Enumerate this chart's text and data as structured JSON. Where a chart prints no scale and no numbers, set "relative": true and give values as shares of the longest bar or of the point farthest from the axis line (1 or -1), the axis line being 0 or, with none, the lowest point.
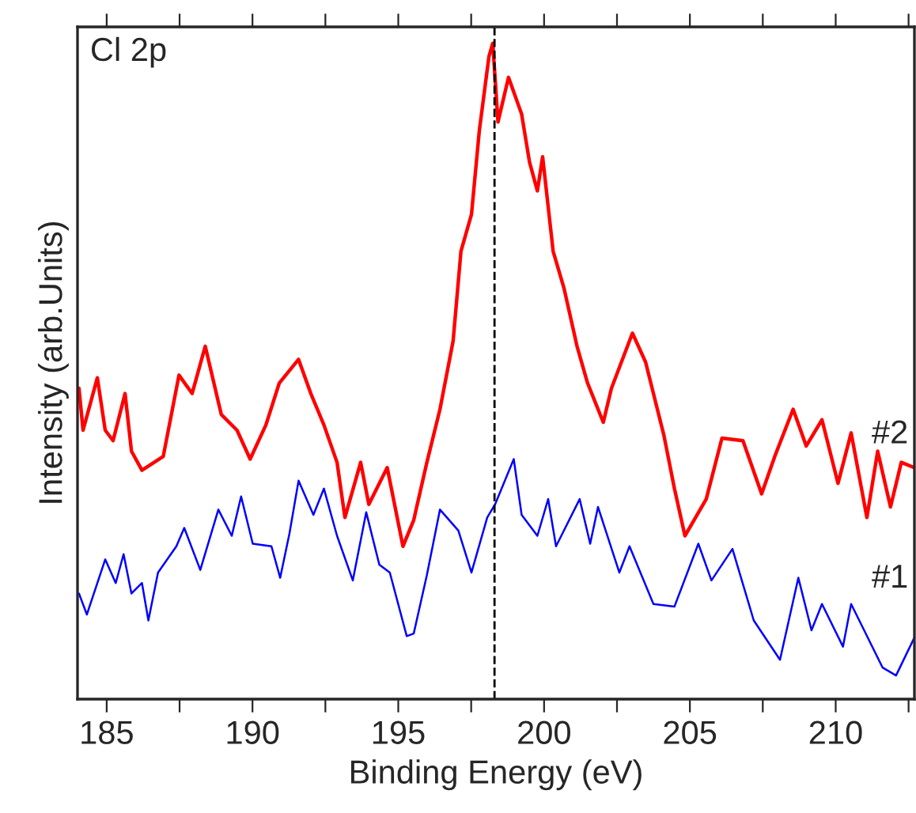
{
  "chart_data": {
    "type": "line",
    "relative": true,
    "xlabel": "Binding Energy (eV)",
    "ylabel": "Intensity (arb.Units)",
    "annotations": [
      "Cl 2p"
    ],
    "xlim": [
      184.0,
      212.7
    ],
    "xticks": [
      185,
      {
        "value": 187.5,
        "label": null
      },
      190,
      {
        "value": 192.5,
        "label": null
      },
      195,
      {
        "value": 197.5,
        "label": null
      },
      200,
      {
        "value": 202.5,
        "label": null
      },
      205,
      {
        "value": 207.5,
        "label": null
      },
      210,
      {
        "value": 212.5,
        "label": null
      }
    ],
    "ref_lines": [
      {
        "axis": "x",
        "value": 198.3,
        "color": "#000000",
        "line_style": "dashed"
      }
    ],
    "grid": false,
    "tick_labels": "x",
    "series": [
      {
        "name": "#2",
        "color": "#ff0000",
        "x": [
          184.05,
          184.19,
          184.68,
          184.95,
          185.22,
          185.63,
          185.85,
          186.21,
          186.94,
          187.48,
          187.93,
          188.38,
          188.93,
          189.47,
          189.92,
          190.46,
          190.92,
          191.58,
          192.0,
          192.45,
          192.9,
          193.17,
          193.71,
          193.99,
          194.62,
          195.16,
          195.53,
          195.98,
          196.43,
          196.88,
          197.15,
          197.51,
          197.78,
          198.11,
          198.24,
          198.42,
          198.78,
          199.23,
          199.5,
          199.77,
          199.95,
          200.31,
          200.68,
          201.13,
          201.49,
          202.03,
          202.31,
          203.03,
          203.48,
          204.11,
          204.47,
          204.83,
          205.56,
          206.1,
          206.82,
          207.46,
          207.91,
          208.54,
          208.99,
          209.53,
          210.08,
          210.53,
          211.07,
          211.44,
          211.88,
          212.25,
          212.69
        ],
        "values": [
          0.474,
          0.41,
          0.49,
          0.41,
          0.394,
          0.466,
          0.378,
          0.349,
          0.37,
          0.494,
          0.466,
          0.538,
          0.434,
          0.41,
          0.366,
          0.418,
          0.482,
          0.518,
          0.466,
          0.418,
          0.361,
          0.277,
          0.361,
          0.297,
          0.353,
          0.233,
          0.273,
          0.361,
          0.442,
          0.546,
          0.683,
          0.739,
          0.867,
          0.98,
          1.0,
          0.88,
          0.948,
          0.892,
          0.819,
          0.775,
          0.827,
          0.683,
          0.627,
          0.538,
          0.482,
          0.422,
          0.474,
          0.558,
          0.514,
          0.402,
          0.321,
          0.249,
          0.305,
          0.398,
          0.394,
          0.313,
          0.37,
          0.442,
          0.386,
          0.426,
          0.329,
          0.406,
          0.277,
          0.378,
          0.293,
          0.361,
          0.353
        ]
      },
      {
        "name": "#1",
        "color": "#0000ff",
        "x": [
          184.05,
          184.32,
          184.95,
          185.31,
          185.58,
          185.85,
          186.21,
          186.43,
          186.76,
          187.39,
          187.66,
          188.21,
          188.83,
          189.29,
          189.61,
          190.01,
          190.65,
          190.95,
          191.27,
          191.58,
          192.09,
          192.45,
          192.9,
          193.44,
          193.9,
          194.35,
          194.71,
          195.29,
          195.53,
          195.98,
          196.43,
          197.06,
          197.51,
          198.05,
          198.32,
          198.96,
          199.23,
          199.77,
          200.14,
          200.41,
          201.22,
          201.58,
          201.85,
          202.58,
          202.93,
          203.75,
          204.47,
          205.29,
          205.74,
          206.46,
          207.19,
          208.09,
          208.72,
          209.17,
          209.53,
          210.25,
          210.53,
          211.61,
          212.07,
          212.69
        ],
        "values": [
          0.161,
          0.129,
          0.213,
          0.177,
          0.221,
          0.161,
          0.177,
          0.12,
          0.193,
          0.233,
          0.261,
          0.197,
          0.289,
          0.249,
          0.309,
          0.237,
          0.233,
          0.185,
          0.253,
          0.333,
          0.281,
          0.321,
          0.249,
          0.181,
          0.285,
          0.205,
          0.193,
          0.096,
          0.1,
          0.189,
          0.289,
          0.257,
          0.193,
          0.277,
          0.297,
          0.366,
          0.281,
          0.249,
          0.305,
          0.233,
          0.305,
          0.237,
          0.293,
          0.193,
          0.233,
          0.145,
          0.141,
          0.237,
          0.181,
          0.229,
          0.12,
          0.06,
          0.185,
          0.105,
          0.145,
          0.08,
          0.145,
          0.048,
          0.036,
          0.093
        ]
      }
    ]
  }
}
